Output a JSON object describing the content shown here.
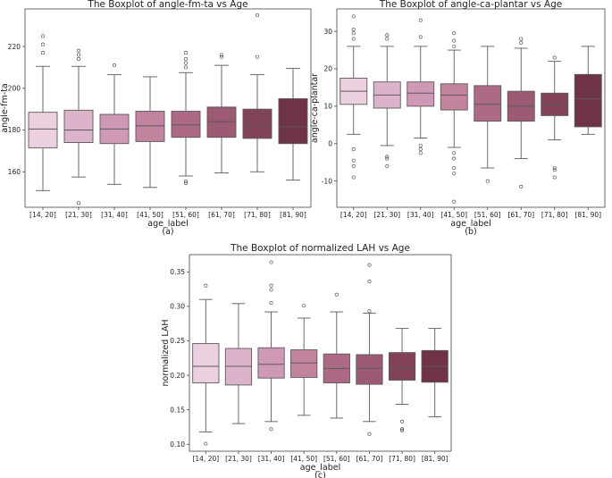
{
  "chart_data": [
    {
      "type": "box",
      "title": "The Boxplot of angle-fm-ta vs Age",
      "xlabel": "age_label",
      "ylabel": "angle-fm-ta",
      "caption": "(a)",
      "ylim": [
        143,
        238
      ],
      "yticks": [
        160,
        180,
        200,
        220
      ],
      "categories": [
        "[14, 20]",
        "[21, 30]",
        "[31, 40]",
        "[41, 50]",
        "[51, 60]",
        "[61, 70]",
        "[71, 80]",
        "[81, 90]"
      ],
      "boxes": [
        {
          "whislo": 151,
          "q1": 171.5,
          "med": 180.5,
          "q3": 188.5,
          "whishi": 210.5,
          "fliers": [
            217,
            221,
            225
          ]
        },
        {
          "whislo": 157.5,
          "q1": 174,
          "med": 180,
          "q3": 189.5,
          "whishi": 210.5,
          "fliers": [
            145,
            214,
            216,
            218
          ]
        },
        {
          "whislo": 154,
          "q1": 173.5,
          "med": 180.5,
          "q3": 187.5,
          "whishi": 206.5,
          "fliers": [
            211
          ]
        },
        {
          "whislo": 152.5,
          "q1": 174.5,
          "med": 182,
          "q3": 189,
          "whishi": 205.5,
          "fliers": []
        },
        {
          "whislo": 158,
          "q1": 176.5,
          "med": 182.5,
          "q3": 189,
          "whishi": 207.5,
          "fliers": [
            154.5,
            155.5,
            210,
            212,
            214,
            217
          ]
        },
        {
          "whislo": 159.5,
          "q1": 176.5,
          "med": 184,
          "q3": 191,
          "whishi": 211,
          "fliers": [
            215,
            216
          ]
        },
        {
          "whislo": 160,
          "q1": 176,
          "med": 182.5,
          "q3": 190,
          "whishi": 206.5,
          "fliers": [
            215,
            235
          ]
        },
        {
          "whislo": 156,
          "q1": 173.5,
          "med": 181.5,
          "q3": 195,
          "whishi": 209.5,
          "fliers": []
        }
      ]
    },
    {
      "type": "box",
      "title": "The Boxplot of angle-ca-plantar vs Age",
      "xlabel": "age_label",
      "ylabel": "angle-ca-plantar",
      "caption": "(b)",
      "ylim": [
        -17,
        36
      ],
      "yticks": [
        -10,
        0,
        10,
        20,
        30
      ],
      "categories": [
        "[14, 20]",
        "[21, 30]",
        "[31, 40]",
        "[41, 50]",
        "[51, 60]",
        "[61, 70]",
        "[71, 80]",
        "[81, 90]"
      ],
      "boxes": [
        {
          "whislo": 2.5,
          "q1": 10.5,
          "med": 14,
          "q3": 17.5,
          "whishi": 26,
          "fliers": [
            -9,
            -6,
            -4.5,
            -1.5,
            28,
            29.5,
            30.5,
            34
          ]
        },
        {
          "whislo": -0.5,
          "q1": 9.5,
          "med": 13,
          "q3": 16.5,
          "whishi": 26,
          "fliers": [
            -6,
            -4,
            -3.5,
            28,
            29
          ]
        },
        {
          "whislo": 1.5,
          "q1": 10,
          "med": 13.5,
          "q3": 16.5,
          "whishi": 26,
          "fliers": [
            -2.5,
            -1.5,
            -0.5,
            28.5,
            33
          ]
        },
        {
          "whislo": -1,
          "q1": 9,
          "med": 13,
          "q3": 16,
          "whishi": 25,
          "fliers": [
            -15.5,
            -8,
            -6.5,
            -4,
            -2.5,
            26,
            27.5,
            29.5
          ]
        },
        {
          "whislo": -6.5,
          "q1": 6,
          "med": 10.5,
          "q3": 15.5,
          "whishi": 26,
          "fliers": [
            -10
          ]
        },
        {
          "whislo": -4,
          "q1": 6,
          "med": 10,
          "q3": 14,
          "whishi": 25.5,
          "fliers": [
            -11.5,
            27,
            28
          ]
        },
        {
          "whislo": 1,
          "q1": 7.5,
          "med": 10.5,
          "q3": 13.5,
          "whishi": 22,
          "fliers": [
            -9,
            -7,
            -6.5,
            23
          ]
        },
        {
          "whislo": 2.5,
          "q1": 4.5,
          "med": 12,
          "q3": 18.5,
          "whishi": 26,
          "fliers": []
        }
      ]
    },
    {
      "type": "box",
      "title": "The Boxplot of normalized LAH vs Age",
      "xlabel": "age_label",
      "ylabel": "normalized LAH",
      "caption": "(c)",
      "ylim": [
        0.09,
        0.375
      ],
      "yticks": [
        0.1,
        0.15,
        0.2,
        0.25,
        0.3,
        0.35
      ],
      "categories": [
        "[14, 20]",
        "[21, 30]",
        "[31, 40]",
        "[41, 50]",
        "[51, 60]",
        "[61, 70]",
        "[71, 80]",
        "[81, 90]"
      ],
      "boxes": [
        {
          "whislo": 0.118,
          "q1": 0.189,
          "med": 0.213,
          "q3": 0.246,
          "whishi": 0.31,
          "fliers": [
            0.101,
            0.33
          ]
        },
        {
          "whislo": 0.13,
          "q1": 0.186,
          "med": 0.213,
          "q3": 0.239,
          "whishi": 0.304,
          "fliers": []
        },
        {
          "whislo": 0.133,
          "q1": 0.196,
          "med": 0.216,
          "q3": 0.24,
          "whishi": 0.292,
          "fliers": [
            0.122,
            0.305,
            0.324,
            0.33,
            0.364
          ]
        },
        {
          "whislo": 0.142,
          "q1": 0.197,
          "med": 0.218,
          "q3": 0.237,
          "whishi": 0.283,
          "fliers": [
            0.301
          ]
        },
        {
          "whislo": 0.138,
          "q1": 0.189,
          "med": 0.21,
          "q3": 0.231,
          "whishi": 0.292,
          "fliers": [
            0.317
          ]
        },
        {
          "whislo": 0.133,
          "q1": 0.187,
          "med": 0.21,
          "q3": 0.23,
          "whishi": 0.29,
          "fliers": [
            0.115,
            0.293,
            0.336,
            0.36
          ]
        },
        {
          "whislo": 0.158,
          "q1": 0.193,
          "med": 0.211,
          "q3": 0.233,
          "whishi": 0.268,
          "fliers": [
            0.12,
            0.122,
            0.133
          ]
        },
        {
          "whislo": 0.14,
          "q1": 0.19,
          "med": 0.213,
          "q3": 0.236,
          "whishi": 0.268,
          "fliers": []
        }
      ]
    }
  ],
  "palette": [
    "#ecd0e0",
    "#ddb3cb",
    "#cf98b5",
    "#c2839f",
    "#ac6a86",
    "#9c5a74",
    "#82435a",
    "#6e3446"
  ],
  "colors": {
    "line": "#5a5a5a",
    "frame": "#444444"
  }
}
